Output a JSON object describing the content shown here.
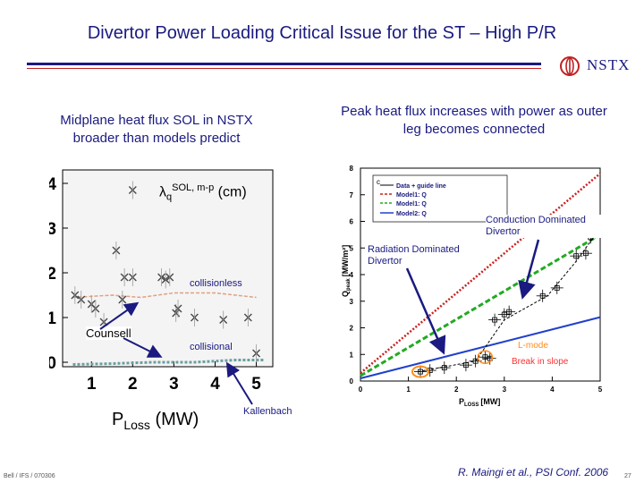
{
  "title": "Divertor Power Loading Critical Issue for the ST – High P/R",
  "logo": {
    "text": "NSTX",
    "icon": "nstx-emblem-icon"
  },
  "left_caption": "Midplane heat flux SOL in NSTX broader than models predict",
  "right_caption": "Peak heat flux increases with power as outer leg becomes connected",
  "left_plot": {
    "ylabel_symbol": "λ",
    "ylabel_sub": "q",
    "ylabel_sup": "SOL, m-p",
    "ylabel_unit": "(cm)",
    "xlabel_main": "P",
    "xlabel_sub": "Loss",
    "xlabel_unit": "(MW)",
    "yticks": [
      "0",
      "1",
      "2",
      "3",
      "4"
    ],
    "xticks": [
      "1",
      "2",
      "3",
      "4",
      "5"
    ],
    "annotations": {
      "collisionless": "collisionless",
      "collisional": "collisional",
      "counsell": "Counsell",
      "kallenbach": "Kallenbach"
    }
  },
  "right_plot": {
    "yticks": [
      "0",
      "1",
      "2",
      "3",
      "4",
      "5",
      "6",
      "7",
      "8"
    ],
    "xticks": [
      "0",
      "1",
      "2",
      "3",
      "4",
      "5"
    ],
    "ylabel": "Q",
    "ylabel_sub": "peak",
    "ylabel_unit": "[MW/m²]",
    "xlabel": "P",
    "xlabel_sub": "LOSS",
    "xlabel_unit": "[MW]",
    "legend": {
      "panel": "c",
      "entries": [
        "Data + guide line",
        "Model1: Q",
        "Model1: Q",
        "Model2: Q"
      ]
    },
    "annotations": {
      "conduction": "Conduction Dominated Divertor",
      "radiation": "Radiation Dominated Divertor",
      "lmode": "L-mode",
      "break": "Break in slope"
    }
  },
  "chart_data": [
    {
      "type": "scatter",
      "xlim": [
        0.3,
        5.4
      ],
      "ylim": [
        -0.1,
        4.3
      ],
      "points": [
        {
          "x": 0.6,
          "y": 1.5
        },
        {
          "x": 0.75,
          "y": 1.4
        },
        {
          "x": 1.0,
          "y": 1.3
        },
        {
          "x": 1.1,
          "y": 1.2
        },
        {
          "x": 1.3,
          "y": 0.9
        },
        {
          "x": 1.6,
          "y": 2.5
        },
        {
          "x": 1.75,
          "y": 1.4
        },
        {
          "x": 1.8,
          "y": 1.9
        },
        {
          "x": 2.0,
          "y": 1.9
        },
        {
          "x": 2.0,
          "y": 3.85
        },
        {
          "x": 2.7,
          "y": 1.9
        },
        {
          "x": 2.8,
          "y": 1.85
        },
        {
          "x": 2.9,
          "y": 1.9
        },
        {
          "x": 3.05,
          "y": 1.1
        },
        {
          "x": 3.1,
          "y": 1.2
        },
        {
          "x": 3.5,
          "y": 1.0
        },
        {
          "x": 4.2,
          "y": 0.95
        },
        {
          "x": 4.8,
          "y": 1.0
        },
        {
          "x": 5.0,
          "y": 0.2
        }
      ],
      "collisionless_line": [
        {
          "x": 0.55,
          "y": 1.45
        },
        {
          "x": 1.5,
          "y": 1.5
        },
        {
          "x": 2.2,
          "y": 1.45
        },
        {
          "x": 3.0,
          "y": 1.55
        },
        {
          "x": 4.0,
          "y": 1.55
        },
        {
          "x": 5.0,
          "y": 1.45
        }
      ],
      "collisional_line": [
        {
          "x": 0.55,
          "y": -0.05
        },
        {
          "x": 1.5,
          "y": -0.03
        },
        {
          "x": 2.5,
          "y": 0.0
        },
        {
          "x": 3.5,
          "y": 0.0
        },
        {
          "x": 4.5,
          "y": 0.05
        },
        {
          "x": 5.2,
          "y": 0.05
        }
      ]
    },
    {
      "type": "line",
      "xlim": [
        0,
        5
      ],
      "ylim": [
        0,
        8
      ],
      "series": [
        {
          "color": "#cc2020",
          "points": [
            {
              "x": 0,
              "y": 0.3
            },
            {
              "x": 5,
              "y": 7.8
            }
          ]
        },
        {
          "color": "#22aa22",
          "points": [
            {
              "x": 0,
              "y": 0.2
            },
            {
              "x": 5,
              "y": 5.5
            }
          ]
        },
        {
          "color": "#2040cc",
          "points": [
            {
              "x": 0,
              "y": 0.1
            },
            {
              "x": 5,
              "y": 2.4
            }
          ]
        },
        {
          "color": "#000000",
          "points": [
            {
              "x": 1.2,
              "y": 0.35
            },
            {
              "x": 2.4,
              "y": 0.75
            },
            {
              "x": 3.0,
              "y": 2.3
            },
            {
              "x": 3.9,
              "y": 3.2
            },
            {
              "x": 4.5,
              "y": 4.5
            },
            {
              "x": 4.9,
              "y": 5.5
            }
          ]
        }
      ],
      "points": [
        {
          "x": 1.25,
          "y": 0.35
        },
        {
          "x": 1.45,
          "y": 0.4
        },
        {
          "x": 1.75,
          "y": 0.5
        },
        {
          "x": 2.2,
          "y": 0.6
        },
        {
          "x": 2.4,
          "y": 0.75
        },
        {
          "x": 2.6,
          "y": 0.9
        },
        {
          "x": 2.7,
          "y": 0.85
        },
        {
          "x": 2.8,
          "y": 2.3
        },
        {
          "x": 3.0,
          "y": 2.5
        },
        {
          "x": 3.1,
          "y": 2.6
        },
        {
          "x": 3.8,
          "y": 3.2
        },
        {
          "x": 4.1,
          "y": 3.5
        },
        {
          "x": 4.5,
          "y": 4.7
        },
        {
          "x": 4.7,
          "y": 4.8
        },
        {
          "x": 4.8,
          "y": 5.4
        },
        {
          "x": 4.9,
          "y": 5.6
        }
      ]
    }
  ],
  "footer": {
    "left": "Bell / IFS / 070306",
    "citation": "R. Maingi et al., PSI Conf. 2006",
    "page": "27"
  },
  "colors": {
    "title": "#1a1a80",
    "accent_red": "#c02020",
    "model1_red": "#cc2020",
    "model1_green": "#22aa22",
    "model2_blue": "#2040cc",
    "lmode_orange": "#ff8c1a"
  }
}
